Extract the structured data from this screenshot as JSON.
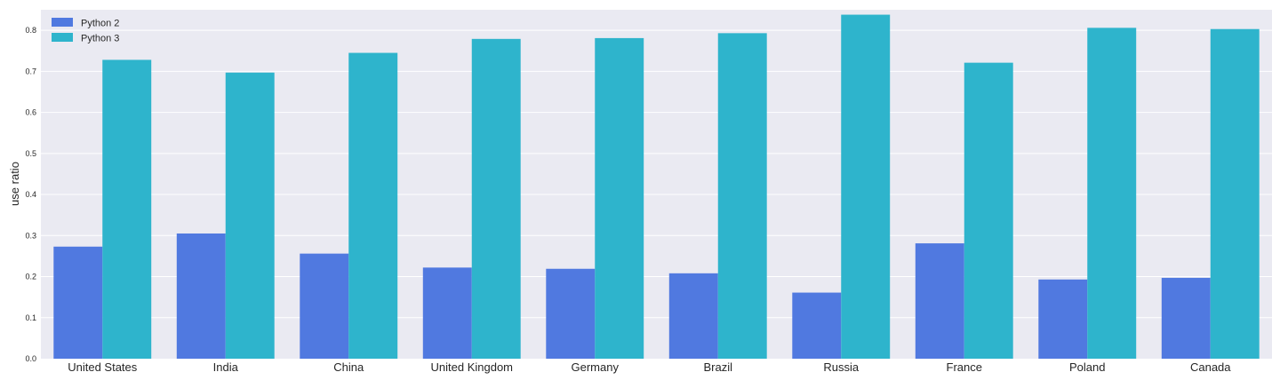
{
  "chart_data": {
    "type": "bar",
    "title": "",
    "xlabel": "",
    "ylabel": "use ratio",
    "ylim": [
      0,
      0.85
    ],
    "yticks": [
      "0.0",
      "0.1",
      "0.2",
      "0.3",
      "0.4",
      "0.5",
      "0.6",
      "0.7",
      "0.8"
    ],
    "grid": true,
    "legend_position": "top-left",
    "categories": [
      "United States",
      "India",
      "China",
      "United Kingdom",
      "Germany",
      "Brazil",
      "Russia",
      "France",
      "Poland",
      "Canada"
    ],
    "series": [
      {
        "name": "Python 2",
        "color": "#5079e0",
        "values": [
          0.273,
          0.305,
          0.256,
          0.222,
          0.219,
          0.208,
          0.161,
          0.281,
          0.193,
          0.197
        ]
      },
      {
        "name": "Python 3",
        "color": "#2eb4cc",
        "values": [
          0.728,
          0.697,
          0.745,
          0.779,
          0.781,
          0.793,
          0.838,
          0.721,
          0.806,
          0.803
        ]
      }
    ]
  },
  "colors": {
    "plot_background": "#eaeaf2",
    "grid": "#ffffff",
    "text": "#262626"
  }
}
